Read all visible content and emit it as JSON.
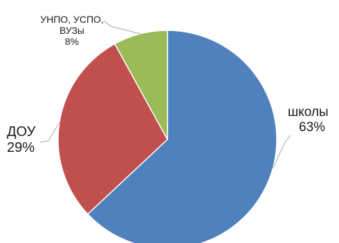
{
  "chart_data": {
    "type": "pie",
    "title": "",
    "slices": [
      {
        "label": "школы",
        "value": 63,
        "value_label": "63%",
        "color": "#4F81BD"
      },
      {
        "label": "ДОУ",
        "value": 29,
        "value_label": "29%",
        "color": "#C0504D"
      },
      {
        "label_lines": [
          "УНПО, УСПО,",
          "ВУЗы"
        ],
        "value": 8,
        "value_label": "8%",
        "color": "#9BBB59"
      }
    ],
    "start": "top",
    "direction": "clockwise",
    "legend": "none",
    "labels": "outside-with-leader-lines"
  }
}
